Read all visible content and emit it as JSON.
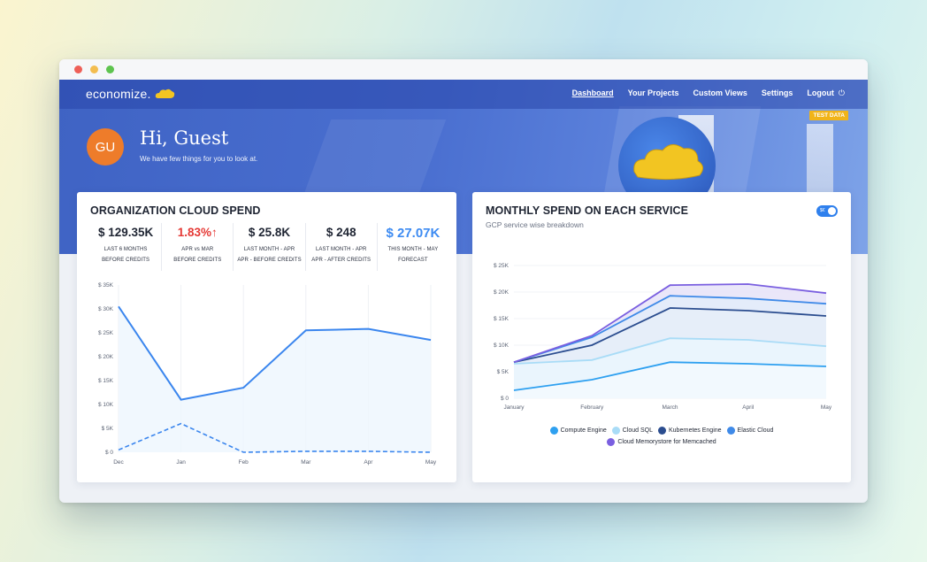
{
  "nav": {
    "logo": "economize.",
    "items": [
      "Dashboard",
      "Your Projects",
      "Custom Views",
      "Settings",
      "Logout"
    ],
    "test_badge": "TEST DATA"
  },
  "greeting": {
    "avatar": "GU",
    "title": "Hi, Guest",
    "subtitle": "We have few things for you to look at."
  },
  "left_card": {
    "title": "ORGANIZATION CLOUD SPEND",
    "stats": [
      {
        "value": "$ 129.35K",
        "label1": "LAST 6 MONTHS",
        "label2": "BEFORE CREDITS"
      },
      {
        "value": "1.83%↑",
        "label1": "APR vs MAR",
        "label2": "BEFORE CREDITS"
      },
      {
        "value": "$ 25.8K",
        "label1": "LAST MONTH - APR",
        "label2": "APR - BEFORE CREDITS"
      },
      {
        "value": "$ 248",
        "label1": "LAST MONTH - APR",
        "label2": "APR - AFTER CREDITS"
      },
      {
        "value": "$ 27.07K",
        "label1": "THIS MONTH - MAY",
        "label2": "FORECAST"
      }
    ]
  },
  "right_card": {
    "title": "MONTHLY SPEND ON EACH SERVICE",
    "subtitle": "GCP service wise breakdown",
    "toggle_label": "$€"
  },
  "colors": {
    "compute": "#2ea0f0",
    "sql": "#a9dcf7",
    "k8s": "#2b4d8f",
    "elastic": "#3f8ae8",
    "memcached": "#7a5fe0"
  },
  "chart_data": [
    {
      "type": "line",
      "x": [
        "Dec",
        "Jan",
        "Feb",
        "Mar",
        "Apr",
        "May"
      ],
      "ylim": [
        0,
        35000
      ],
      "yticks": [
        "$ 0",
        "$ 5K",
        "$ 10K",
        "$ 15K",
        "$ 20K",
        "$ 25K",
        "$ 30K",
        "$ 35K"
      ],
      "series": [
        {
          "values": [
            30500,
            11000,
            13500,
            25500,
            25800,
            23500
          ],
          "style": "solid"
        },
        {
          "values": [
            500,
            6000,
            0,
            200,
            200,
            0
          ],
          "style": "dashed"
        }
      ]
    },
    {
      "type": "area",
      "x": [
        "January",
        "February",
        "March",
        "April",
        "May"
      ],
      "ylim": [
        0,
        25000
      ],
      "yticks": [
        "$ 0",
        "$ 5K",
        "$ 10K",
        "$ 15K",
        "$ 20K",
        "$ 25K"
      ],
      "series": [
        {
          "name": "Compute Engine",
          "values": [
            1500,
            3500,
            6800,
            6500,
            6000
          ]
        },
        {
          "name": "Cloud SQL",
          "values": [
            6500,
            7200,
            11300,
            11000,
            9800
          ]
        },
        {
          "name": "Kubernetes Engine",
          "values": [
            6800,
            10000,
            17000,
            16500,
            15500
          ]
        },
        {
          "name": "Elastic Cloud",
          "values": [
            6800,
            11500,
            19300,
            18800,
            17800
          ]
        },
        {
          "name": "Cloud Memorystore for Memcached",
          "values": [
            6800,
            11800,
            21300,
            21500,
            19800
          ]
        }
      ]
    }
  ]
}
